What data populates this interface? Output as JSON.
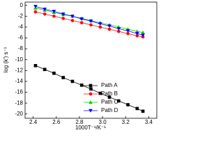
{
  "chart_data": {
    "type": "scatter-line",
    "xlabel": "1000T⁻¹/K⁻¹",
    "ylabel": "log (k') s⁻¹",
    "x": [
      2.42,
      2.5,
      2.58,
      2.66,
      2.74,
      2.82,
      2.9,
      2.98,
      3.06,
      3.14,
      3.22,
      3.3,
      3.35
    ],
    "series": [
      {
        "name": "Path A",
        "color": "#000000",
        "marker": "square",
        "values": [
          -11.1,
          -11.8,
          -12.5,
          -13.3,
          -14.0,
          -14.7,
          -15.4,
          -16.2,
          -16.9,
          -17.6,
          -18.3,
          -19.0,
          -19.5
        ]
      },
      {
        "name": "Path B",
        "color": "#ff0000",
        "marker": "circle",
        "values": [
          -1.2,
          -1.6,
          -2.0,
          -2.4,
          -2.8,
          -3.2,
          -3.6,
          -4.0,
          -4.4,
          -4.8,
          -5.2,
          -5.6,
          -5.8
        ]
      },
      {
        "name": "Path C",
        "color": "#00cc00",
        "marker": "triangle-up",
        "values": [
          -0.5,
          -0.9,
          -1.3,
          -1.7,
          -2.0,
          -2.4,
          -2.8,
          -3.2,
          -3.6,
          -4.0,
          -4.4,
          -4.8,
          -5.0
        ]
      },
      {
        "name": "Path D",
        "color": "#0000ff",
        "marker": "triangle-down",
        "values": [
          -0.2,
          -0.7,
          -1.1,
          -1.6,
          -2.0,
          -2.5,
          -2.9,
          -3.4,
          -3.8,
          -4.3,
          -4.7,
          -5.2,
          -5.5
        ]
      }
    ],
    "xlim": [
      2.33,
      3.47
    ],
    "ylim": [
      -20.8,
      0.6
    ],
    "xticks": [
      2.4,
      2.6,
      2.8,
      {
        "value": 3,
        "label": "3.0"
      },
      3.2,
      3.4
    ],
    "yticks": [
      0,
      -2,
      -4,
      -6,
      -8,
      -10,
      -12,
      -14,
      -16,
      -18,
      -20
    ],
    "legend": "lower-center"
  }
}
